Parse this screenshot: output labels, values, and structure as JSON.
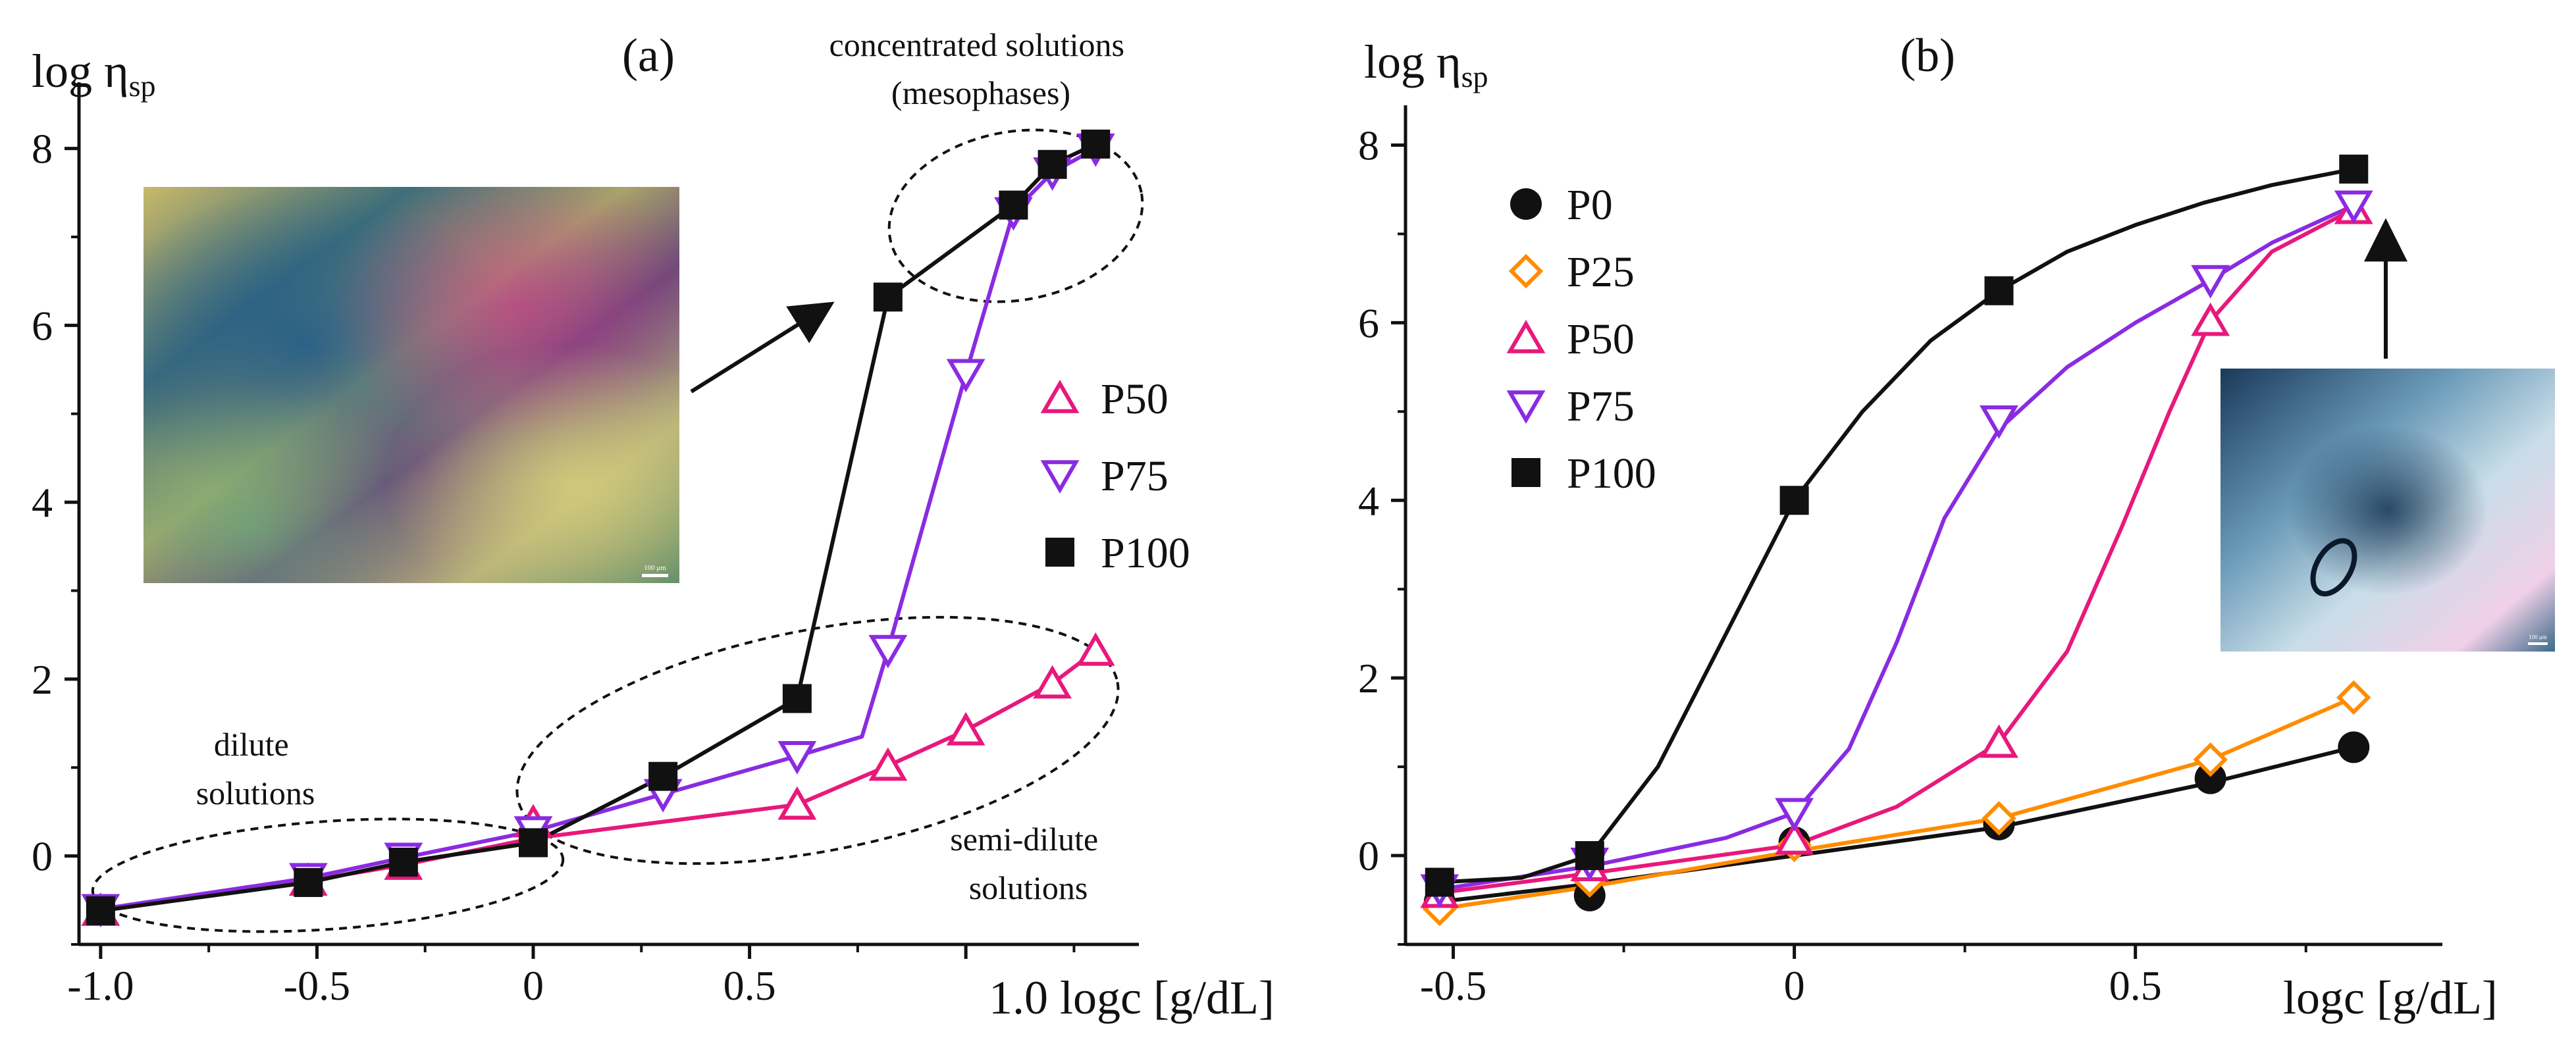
{
  "chart_data": [
    {
      "type": "line",
      "panel_label": "(a)",
      "ylabel": "log η",
      "ylabel_sub": "sp",
      "xlabel": "logc [g/dL]",
      "xlabel_text": "1.0 logc [g/dL]",
      "xlim": [
        -1.05,
        1.4
      ],
      "ylim": [
        -1.0,
        8.6
      ],
      "xticks": [
        -1.0,
        -0.5,
        0,
        0.5
      ],
      "xtick_labels": [
        "-1.0",
        "-0.5",
        "0",
        "0.5"
      ],
      "yticks": [
        0,
        2,
        4,
        6,
        8
      ],
      "ytick_labels": [
        "0",
        "2",
        "4",
        "6",
        "8"
      ],
      "legend": [
        "P50",
        "P75",
        "P100"
      ],
      "series": [
        {
          "name": "P50",
          "marker": "triangle-up",
          "color": "#e8187c",
          "x": [
            -1.0,
            -0.52,
            -0.3,
            0.0,
            0.61,
            0.82,
            1.0,
            1.2,
            1.3
          ],
          "y": [
            -0.62,
            -0.28,
            -0.1,
            0.38,
            0.58,
            1.02,
            1.42,
            1.95,
            2.32
          ]
        },
        {
          "name": "P75",
          "marker": "triangle-down",
          "color": "#8a2be2",
          "x": [
            -1.0,
            -0.52,
            -0.3,
            0.0,
            0.3,
            0.61,
            0.82,
            1.0,
            1.11,
            1.2,
            1.3
          ],
          "y": [
            -0.6,
            -0.25,
            -0.02,
            0.28,
            0.7,
            1.13,
            2.33,
            5.45,
            7.28,
            7.73,
            8.0
          ]
        },
        {
          "name": "P100",
          "marker": "square",
          "color": "#111111",
          "x": [
            -1.0,
            -0.52,
            -0.3,
            0.0,
            0.3,
            0.61,
            0.82,
            1.11,
            1.2,
            1.3
          ],
          "y": [
            -0.62,
            -0.3,
            -0.07,
            0.15,
            0.9,
            1.78,
            6.32,
            7.36,
            7.82,
            8.05
          ]
        }
      ],
      "fit_lines": {
        "P50": {
          "x": [
            -1.0,
            -0.52,
            -0.3,
            0.0,
            0.61,
            0.82,
            1.0,
            1.2,
            1.3
          ],
          "y": [
            -0.62,
            -0.28,
            -0.1,
            0.2,
            0.58,
            1.02,
            1.42,
            1.95,
            2.32
          ]
        },
        "P75": {
          "x": [
            -1.0,
            -0.52,
            -0.3,
            0.0,
            0.3,
            0.61,
            0.76,
            0.82,
            1.0,
            1.11,
            1.2,
            1.3
          ],
          "y": [
            -0.6,
            -0.25,
            -0.02,
            0.28,
            0.7,
            1.13,
            1.35,
            2.33,
            5.45,
            7.28,
            7.73,
            8.0
          ]
        },
        "P100": {
          "x": [
            -1.0,
            -0.52,
            -0.3,
            0.0,
            0.3,
            0.61,
            0.82,
            1.11,
            1.2,
            1.3
          ],
          "y": [
            -0.62,
            -0.3,
            -0.07,
            0.15,
            0.9,
            1.78,
            6.32,
            7.36,
            7.82,
            8.05
          ]
        }
      },
      "annotations": [
        {
          "name": "concentrated",
          "lines": [
            "concentrated solutions",
            "(mesophases)"
          ]
        },
        {
          "name": "dilute",
          "lines": [
            "dilute",
            "solutions"
          ]
        },
        {
          "name": "semi-dilute",
          "lines": [
            "semi-dilute",
            "solutions"
          ]
        }
      ],
      "inset": {
        "scale_label": "100 μm"
      }
    },
    {
      "type": "line",
      "panel_label": "(b)",
      "ylabel": "log η",
      "ylabel_sub": "sp",
      "xlabel": "logc [g/dL]",
      "xlabel_text": "logc [g/dL]",
      "xlim": [
        -0.57,
        0.95
      ],
      "ylim": [
        -1.0,
        8.3
      ],
      "xticks": [
        -0.5,
        0,
        0.5
      ],
      "xtick_labels": [
        "-0.5",
        "0",
        "0.5"
      ],
      "yticks": [
        0,
        2,
        4,
        6,
        8
      ],
      "ytick_labels": [
        "0",
        "2",
        "4",
        "6",
        "8"
      ],
      "legend": [
        "P0",
        "P25",
        "P50",
        "P75",
        "P100"
      ],
      "series": [
        {
          "name": "P0",
          "marker": "circle",
          "color": "#111111",
          "x": [
            -0.52,
            -0.3,
            0.0,
            0.3,
            0.61,
            0.82
          ],
          "y": [
            -0.52,
            -0.45,
            0.15,
            0.35,
            0.87,
            1.22
          ]
        },
        {
          "name": "P25",
          "marker": "diamond",
          "color": "#ff8c00",
          "x": [
            -0.52,
            -0.3,
            0.0,
            0.3,
            0.61,
            0.82
          ],
          "y": [
            -0.6,
            -0.28,
            0.12,
            0.42,
            1.08,
            1.78
          ]
        },
        {
          "name": "P50",
          "marker": "triangle-up",
          "color": "#e8187c",
          "x": [
            -0.52,
            -0.3,
            0.0,
            0.3,
            0.61,
            0.82
          ],
          "y": [
            -0.42,
            -0.12,
            0.18,
            1.27,
            6.02,
            7.28
          ]
        },
        {
          "name": "P75",
          "marker": "triangle-down",
          "color": "#8a2be2",
          "x": [
            -0.52,
            -0.3,
            0.0,
            0.3,
            0.61,
            0.82
          ],
          "y": [
            -0.38,
            -0.08,
            0.48,
            4.9,
            6.48,
            7.32
          ]
        },
        {
          "name": "P100",
          "marker": "square",
          "color": "#111111",
          "x": [
            -0.52,
            -0.3,
            0.0,
            0.3,
            0.82
          ],
          "y": [
            -0.3,
            0.0,
            4.0,
            6.36,
            7.73
          ]
        }
      ],
      "fit_lines": {
        "P0": {
          "x": [
            -0.52,
            -0.3,
            0.0,
            0.3,
            0.61,
            0.82
          ],
          "y": [
            -0.52,
            -0.32,
            0.0,
            0.32,
            0.82,
            1.22
          ]
        },
        "P25": {
          "x": [
            -0.52,
            -0.3,
            0.0,
            0.3,
            0.61,
            0.82
          ],
          "y": [
            -0.6,
            -0.35,
            0.05,
            0.42,
            1.08,
            1.78
          ]
        },
        "P50": {
          "x": [
            -0.52,
            -0.3,
            0.0,
            0.15,
            0.3,
            0.4,
            0.48,
            0.55,
            0.61,
            0.7,
            0.82
          ],
          "y": [
            -0.42,
            -0.2,
            0.12,
            0.55,
            1.27,
            2.3,
            3.7,
            5.0,
            6.02,
            6.8,
            7.28
          ]
        },
        "P75": {
          "x": [
            -0.52,
            -0.3,
            -0.1,
            0.0,
            0.08,
            0.15,
            0.22,
            0.3,
            0.4,
            0.5,
            0.61,
            0.7,
            0.82
          ],
          "y": [
            -0.38,
            -0.12,
            0.2,
            0.48,
            1.2,
            2.4,
            3.8,
            4.8,
            5.5,
            6.0,
            6.48,
            6.9,
            7.32
          ]
        },
        "P100": {
          "x": [
            -0.52,
            -0.4,
            -0.3,
            -0.2,
            -0.1,
            0.0,
            0.1,
            0.2,
            0.3,
            0.4,
            0.5,
            0.6,
            0.7,
            0.82
          ],
          "y": [
            -0.3,
            -0.25,
            0.0,
            1.0,
            2.5,
            4.0,
            5.0,
            5.8,
            6.36,
            6.8,
            7.1,
            7.35,
            7.55,
            7.73
          ]
        }
      },
      "inset": {
        "scale_label": "100 μm"
      }
    }
  ]
}
